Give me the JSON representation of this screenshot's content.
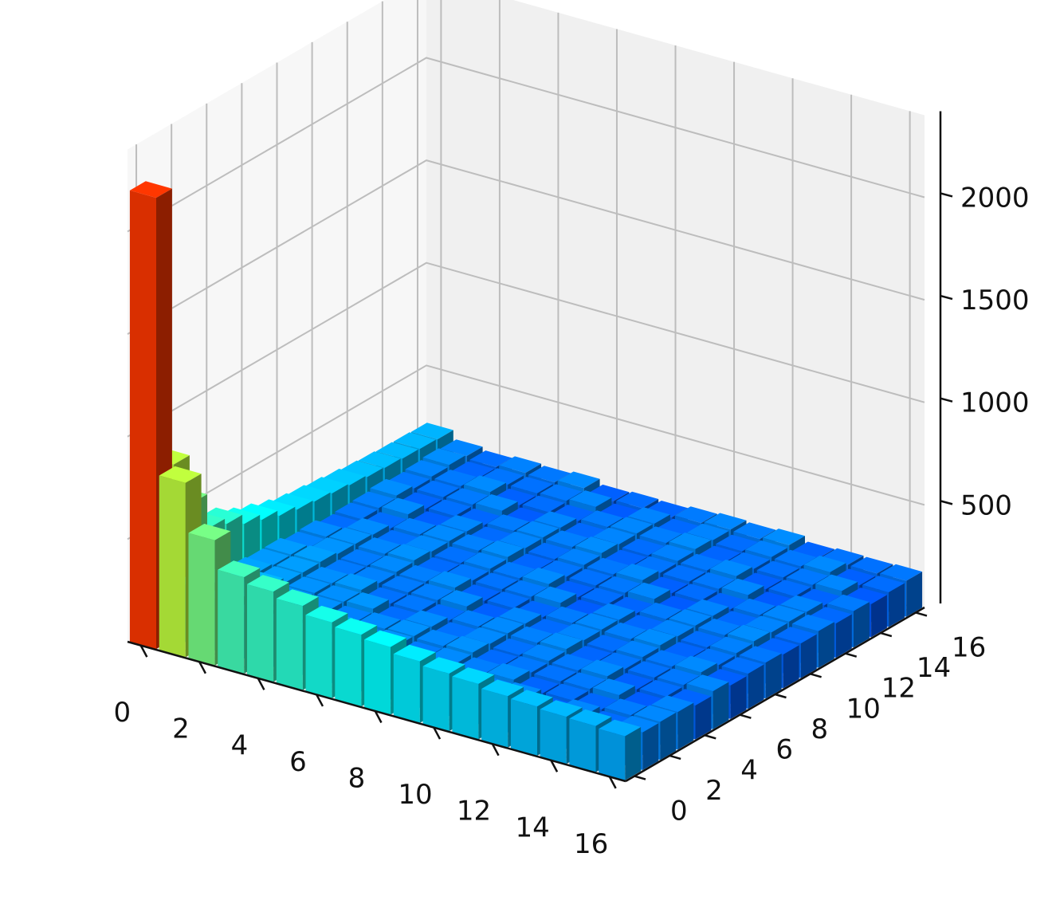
{
  "chart_data": {
    "type": "bar3d",
    "title": "",
    "xlabel": "",
    "ylabel": "",
    "zlabel": "",
    "x_ticks": [
      "0",
      "2",
      "4",
      "6",
      "8",
      "10",
      "12",
      "14",
      "16"
    ],
    "y_ticks": [
      "0",
      "2",
      "4",
      "6",
      "8",
      "10",
      "12",
      "14",
      "16"
    ],
    "z_ticks": [
      "500",
      "1000",
      "1500",
      "2000"
    ],
    "x_range": [
      0,
      17
    ],
    "y_range": [
      0,
      17
    ],
    "z_range": [
      0,
      2400
    ],
    "grid": true,
    "colormap": "jet",
    "grid_size": 17,
    "corner_bar": {
      "x": 0,
      "y": 0,
      "value": 2200
    },
    "edge_x0_values": [
      2200,
      850,
      610,
      440,
      410,
      360,
      330,
      300,
      280,
      270,
      260,
      250,
      240,
      235,
      230,
      228,
      225
    ],
    "edge_y0_values": [
      2200,
      850,
      610,
      470,
      440,
      410,
      370,
      350,
      330,
      300,
      280,
      270,
      250,
      240,
      230,
      225,
      215
    ],
    "interior_level": 175,
    "interior_variation": [
      0,
      8,
      -6,
      12,
      -10,
      4,
      -2,
      10,
      -8,
      6,
      -12,
      2,
      14,
      -4,
      -14,
      8,
      0,
      -6,
      10,
      -10
    ]
  }
}
